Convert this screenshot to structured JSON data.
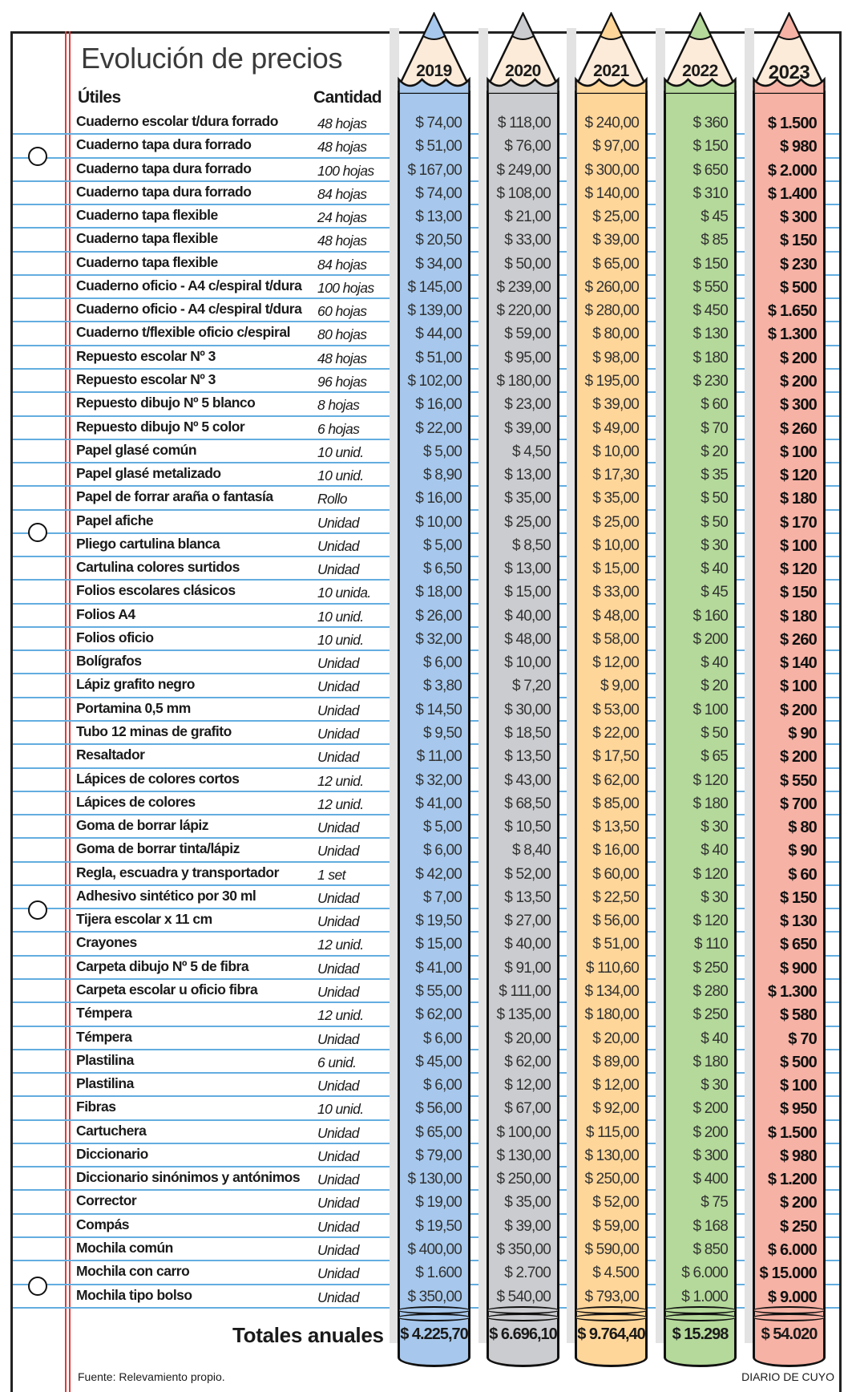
{
  "title": "Evolución de precios",
  "headers": {
    "item": "Útiles",
    "quantity": "Cantidad"
  },
  "years": [
    "2019",
    "2020",
    "2021",
    "2022",
    "2023"
  ],
  "colors": {
    "2019": "#a7c8ec",
    "2020": "#cbcccf",
    "2021": "#fed69a",
    "2022": "#b4d99a",
    "2023": "#f6b2a5",
    "wood": "#fdebd9",
    "rule": "#63ade0",
    "margin": "#e03a3a"
  },
  "rows": [
    [
      "Cuaderno escolar t/dura forrado",
      "48 hojas",
      "$ 74,00",
      "$ 118,00",
      "$ 240,00",
      "$ 360",
      "$ 1.500"
    ],
    [
      "Cuaderno tapa dura forrado",
      "48 hojas",
      "$ 51,00",
      "$ 76,00",
      "$ 97,00",
      "$ 150",
      "$ 980"
    ],
    [
      "Cuaderno tapa dura forrado",
      "100 hojas",
      "$ 167,00",
      "$ 249,00",
      "$ 300,00",
      "$ 650",
      "$ 2.000"
    ],
    [
      "Cuaderno tapa dura forrado",
      "84 hojas",
      "$ 74,00",
      "$ 108,00",
      "$ 140,00",
      "$ 310",
      "$ 1.400"
    ],
    [
      "Cuaderno tapa flexible",
      "24 hojas",
      "$ 13,00",
      "$ 21,00",
      "$ 25,00",
      "$ 45",
      "$ 300"
    ],
    [
      "Cuaderno tapa flexible",
      "48 hojas",
      "$ 20,50",
      "$ 33,00",
      "$ 39,00",
      "$ 85",
      "$ 150"
    ],
    [
      "Cuaderno tapa flexible",
      "84 hojas",
      "$ 34,00",
      "$ 50,00",
      "$ 65,00",
      "$ 150",
      "$ 230"
    ],
    [
      "Cuaderno oficio - A4 c/espiral t/dura",
      "100 hojas",
      "$ 145,00",
      "$ 239,00",
      "$ 260,00",
      "$ 550",
      "$ 500"
    ],
    [
      "Cuaderno oficio - A4 c/espiral t/dura",
      "60 hojas",
      "$ 139,00",
      "$ 220,00",
      "$ 280,00",
      "$ 450",
      "$ 1.650"
    ],
    [
      "Cuaderno t/flexible oficio c/espiral",
      "80 hojas",
      "$ 44,00",
      "$ 59,00",
      "$ 80,00",
      "$ 130",
      "$ 1.300"
    ],
    [
      "Repuesto escolar Nº 3",
      "48 hojas",
      "$ 51,00",
      "$ 95,00",
      "$ 98,00",
      "$ 180",
      "$ 200"
    ],
    [
      "Repuesto escolar Nº 3",
      "96 hojas",
      "$ 102,00",
      "$ 180,00",
      "$ 195,00",
      "$ 230",
      "$ 200"
    ],
    [
      "Repuesto dibujo Nº 5 blanco",
      "8 hojas",
      "$ 16,00",
      "$ 23,00",
      "$ 39,00",
      "$ 60",
      "$ 300"
    ],
    [
      "Repuesto dibujo Nº 5 color",
      "6 hojas",
      "$ 22,00",
      "$ 39,00",
      "$ 49,00",
      "$ 70",
      "$ 260"
    ],
    [
      "Papel glasé común",
      "10 unid.",
      "$ 5,00",
      "$ 4,50",
      "$ 10,00",
      "$ 20",
      "$ 100"
    ],
    [
      "Papel glasé metalizado",
      "10 unid.",
      "$ 8,90",
      "$ 13,00",
      "$ 17,30",
      "$ 35",
      "$ 120"
    ],
    [
      "Papel de forrar araña o fantasía",
      "Rollo",
      "$ 16,00",
      "$ 35,00",
      "$ 35,00",
      "$ 50",
      "$ 180"
    ],
    [
      "Papel afiche",
      "Unidad",
      "$ 10,00",
      "$ 25,00",
      "$ 25,00",
      "$ 50",
      "$ 170"
    ],
    [
      "Pliego cartulina blanca",
      "Unidad",
      "$ 5,00",
      "$ 8,50",
      "$ 10,00",
      "$ 30",
      "$ 100"
    ],
    [
      "Cartulina colores surtidos",
      "Unidad",
      "$ 6,50",
      "$ 13,00",
      "$ 15,00",
      "$ 40",
      "$ 120"
    ],
    [
      "Folios escolares clásicos",
      "10 unida.",
      "$ 18,00",
      "$ 15,00",
      "$ 33,00",
      "$ 45",
      "$ 150"
    ],
    [
      "Folios A4",
      "10 unid.",
      "$ 26,00",
      "$ 40,00",
      "$ 48,00",
      "$ 160",
      "$ 180"
    ],
    [
      "Folios oficio",
      "10 unid.",
      "$ 32,00",
      "$ 48,00",
      "$ 58,00",
      "$ 200",
      "$ 260"
    ],
    [
      "Bolígrafos",
      "Unidad",
      "$ 6,00",
      "$ 10,00",
      "$ 12,00",
      "$ 40",
      "$ 140"
    ],
    [
      "Lápiz grafito negro",
      "Unidad",
      "$ 3,80",
      "$ 7,20",
      "$ 9,00",
      "$ 20",
      "$ 100"
    ],
    [
      "Portamina 0,5 mm",
      "Unidad",
      "$ 14,50",
      "$ 30,00",
      "$ 53,00",
      "$ 100",
      "$ 200"
    ],
    [
      "Tubo 12 minas de grafito",
      "Unidad",
      "$ 9,50",
      "$ 18,50",
      "$ 22,00",
      "$ 50",
      "$ 90"
    ],
    [
      "Resaltador",
      "Unidad",
      "$ 11,00",
      "$ 13,50",
      "$ 17,50",
      "$ 65",
      "$ 200"
    ],
    [
      "Lápices de colores cortos",
      "12 unid.",
      "$ 32,00",
      "$ 43,00",
      "$ 62,00",
      "$ 120",
      "$ 550"
    ],
    [
      "Lápices de colores",
      "12 unid.",
      "$ 41,00",
      "$ 68,50",
      "$ 85,00",
      "$ 180",
      "$ 700"
    ],
    [
      "Goma de borrar lápiz",
      "Unidad",
      "$ 5,00",
      "$ 10,50",
      "$ 13,50",
      "$ 30",
      "$ 80"
    ],
    [
      "Goma de borrar tinta/lápiz",
      "Unidad",
      "$ 6,00",
      "$ 8,40",
      "$ 16,00",
      "$ 40",
      "$ 90"
    ],
    [
      "Regla, escuadra y transportador",
      "1 set",
      "$ 42,00",
      "$ 52,00",
      "$ 60,00",
      "$ 120",
      "$ 60"
    ],
    [
      "Adhesivo sintético por 30 ml",
      "Unidad",
      "$ 7,00",
      "$ 13,50",
      "$ 22,50",
      "$ 30",
      "$ 150"
    ],
    [
      "Tijera escolar x 11 cm",
      "Unidad",
      "$ 19,50",
      "$ 27,00",
      "$ 56,00",
      "$ 120",
      "$ 130"
    ],
    [
      "Crayones",
      "12 unid.",
      "$ 15,00",
      "$ 40,00",
      "$ 51,00",
      "$ 110",
      "$ 650"
    ],
    [
      "Carpeta dibujo Nº 5 de fibra",
      "Unidad",
      "$ 41,00",
      "$ 91,00",
      "$ 110,60",
      "$ 250",
      "$ 900"
    ],
    [
      "Carpeta escolar u oficio fibra",
      "Unidad",
      "$ 55,00",
      "$ 111,00",
      "$ 134,00",
      "$ 280",
      "$ 1.300"
    ],
    [
      "Témpera",
      "12 unid.",
      "$ 62,00",
      "$ 135,00",
      "$ 180,00",
      "$ 250",
      "$ 580"
    ],
    [
      "Témpera",
      "Unidad",
      "$ 6,00",
      "$ 20,00",
      "$ 20,00",
      "$ 40",
      "$ 70"
    ],
    [
      "Plastilina",
      "6 unid.",
      "$ 45,00",
      "$ 62,00",
      "$ 89,00",
      "$ 180",
      "$ 500"
    ],
    [
      "Plastilina",
      "Unidad",
      "$ 6,00",
      "$ 12,00",
      "$ 12,00",
      "$ 30",
      "$ 100"
    ],
    [
      "Fibras",
      "10 unid.",
      "$ 56,00",
      "$ 67,00",
      "$ 92,00",
      "$ 200",
      "$ 950"
    ],
    [
      "Cartuchera",
      "Unidad",
      "$ 65,00",
      "$ 100,00",
      "$ 115,00",
      "$ 200",
      "$ 1.500"
    ],
    [
      "Diccionario",
      "Unidad",
      "$ 79,00",
      "$ 130,00",
      "$ 130,00",
      "$ 300",
      "$ 980"
    ],
    [
      "Diccionario sinónimos y antónimos",
      "Unidad",
      "$ 130,00",
      "$ 250,00",
      "$ 250,00",
      "$ 400",
      "$ 1.200"
    ],
    [
      "Corrector",
      "Unidad",
      "$ 19,00",
      "$ 35,00",
      "$ 52,00",
      "$ 75",
      "$ 200"
    ],
    [
      "Compás",
      "Unidad",
      "$ 19,50",
      "$ 39,00",
      "$ 59,00",
      "$ 168",
      "$ 250"
    ],
    [
      "Mochila común",
      "Unidad",
      "$ 400,00",
      "$ 350,00",
      "$ 590,00",
      "$ 850",
      "$ 6.000"
    ],
    [
      "Mochila con carro",
      "Unidad",
      "$ 1.600",
      "$ 2.700",
      "$ 4.500",
      "$ 6.000",
      "$ 15.000"
    ],
    [
      "Mochila tipo bolso",
      "Unidad",
      "$ 350,00",
      "$ 540,00",
      "$ 793,00",
      "$ 1.000",
      "$ 9.000"
    ]
  ],
  "totals_label": "Totales anuales",
  "totals": [
    "$ 4.225,70",
    "$ 6.696,10",
    "$ 9.764,40",
    "$ 15.298",
    "$ 54.020"
  ],
  "source": "Fuente: Relevamiento propio.",
  "brand": "DIARIO DE CUYO"
}
